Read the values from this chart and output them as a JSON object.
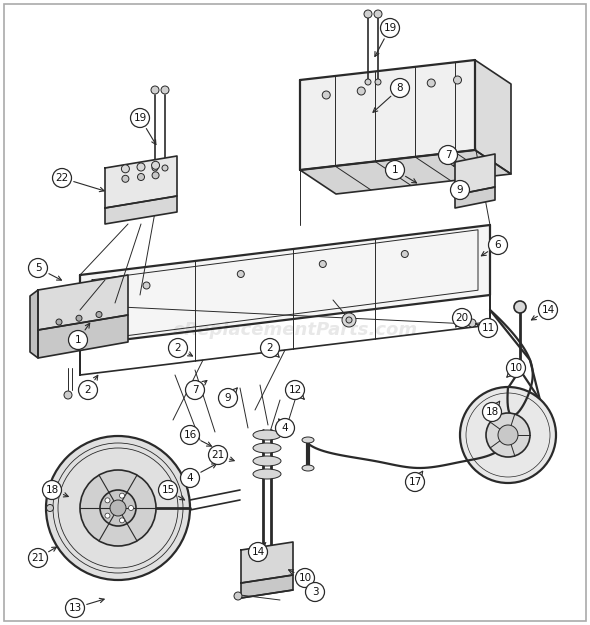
{
  "bg_color": "#ffffff",
  "border_color": "#bbbbbb",
  "line_color": "#2a2a2a",
  "watermark_text": "eReplacementParts.com",
  "watermark_color": "#cccccc",
  "watermark_alpha": 0.45,
  "watermark_fontsize": 13,
  "figsize": [
    5.9,
    6.25
  ],
  "dpi": 100
}
